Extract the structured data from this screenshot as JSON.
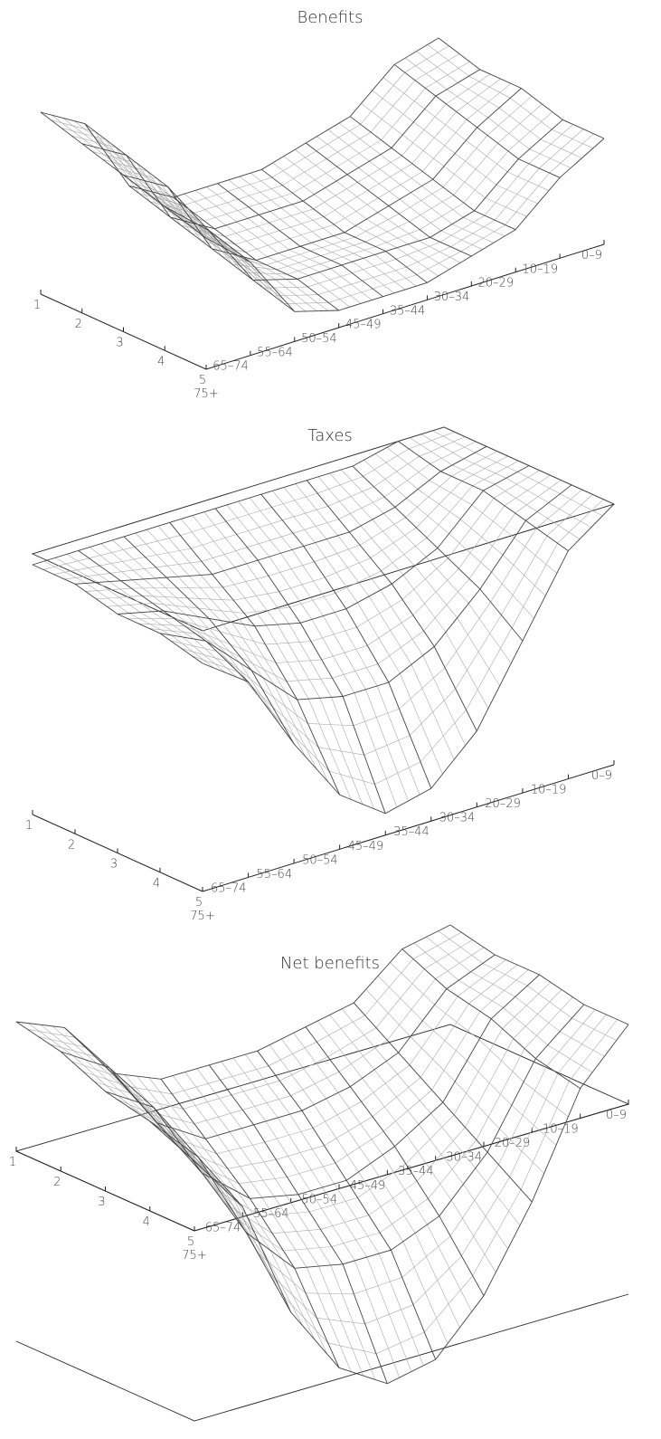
{
  "chart_data": [
    {
      "type": "surface",
      "title": "Benefits",
      "x": [
        "0–9",
        "10–19",
        "20–29",
        "30–34",
        "35–44",
        "45–49",
        "50–54",
        "55–64",
        "65–74",
        "75+"
      ],
      "y": [
        1,
        2,
        3,
        4,
        5
      ],
      "values": [
        [
          10,
          9,
          6,
          5,
          4,
          4,
          4,
          6,
          12,
          14
        ],
        [
          9,
          8,
          5,
          4,
          3,
          3,
          3,
          5,
          11,
          13
        ],
        [
          9,
          7,
          4,
          3,
          2,
          2,
          2,
          4,
          10,
          12
        ],
        [
          8,
          6,
          3,
          2,
          2,
          2,
          2,
          3,
          8,
          11
        ],
        [
          8,
          6,
          3,
          2,
          1,
          1,
          1,
          2,
          7,
          10
        ]
      ],
      "zero_plane": false
    },
    {
      "type": "surface",
      "title": "Taxes",
      "x": [
        "0–9",
        "10–19",
        "20–29",
        "30–34",
        "35–44",
        "45–49",
        "50–54",
        "55–64",
        "65–74",
        "75+"
      ],
      "y": [
        1,
        2,
        3,
        4,
        5
      ],
      "values": [
        [
          0,
          0,
          -1,
          -1,
          -1,
          -1,
          -1,
          -1,
          -1,
          -1
        ],
        [
          0,
          -1,
          -3,
          -4,
          -4,
          -4,
          -4,
          -3,
          -2,
          -1
        ],
        [
          0,
          -1,
          -5,
          -7,
          -8,
          -8,
          -7,
          -5,
          -3,
          -2
        ],
        [
          0,
          -2,
          -7,
          -11,
          -13,
          -13,
          -12,
          -8,
          -4,
          -2
        ],
        [
          0,
          -3,
          -10,
          -17,
          -21,
          -22,
          -19,
          -13,
          -6,
          -3
        ]
      ],
      "zero_plane": true
    },
    {
      "type": "surface",
      "title": "Net benefits",
      "x": [
        "0–9",
        "10–19",
        "20–29",
        "30–34",
        "35–44",
        "45–49",
        "50–54",
        "55–64",
        "65–74",
        "75+"
      ],
      "y": [
        1,
        2,
        3,
        4,
        5
      ],
      "values": [
        [
          10,
          9,
          5,
          4,
          3,
          3,
          3,
          5,
          11,
          13
        ],
        [
          9,
          7,
          2,
          0,
          -1,
          -1,
          -1,
          2,
          9,
          12
        ],
        [
          9,
          6,
          -1,
          -4,
          -6,
          -6,
          -5,
          -1,
          7,
          10
        ],
        [
          8,
          4,
          -4,
          -9,
          -11,
          -11,
          -10,
          -5,
          4,
          9
        ],
        [
          8,
          3,
          -7,
          -15,
          -20,
          -21,
          -18,
          -11,
          1,
          7
        ]
      ],
      "zero_plane": true
    }
  ]
}
